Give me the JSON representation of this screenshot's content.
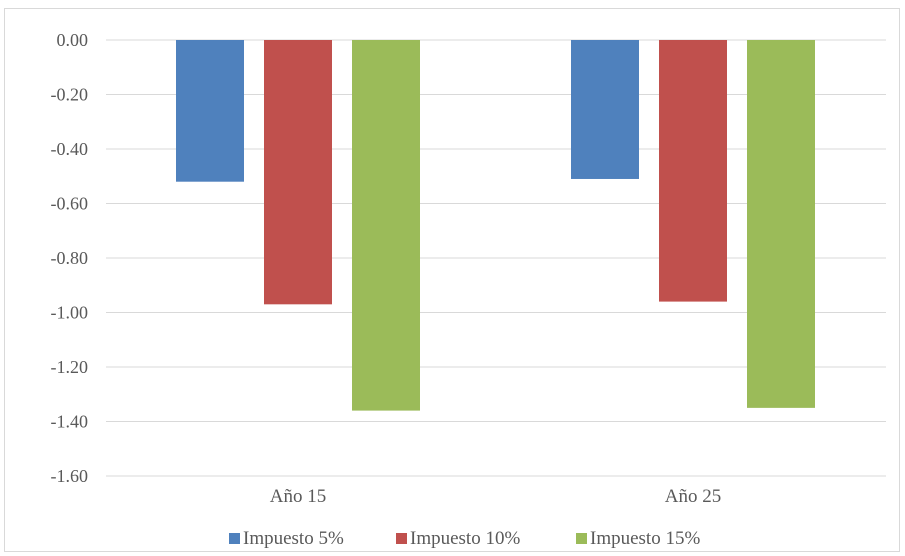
{
  "chart_data": {
    "type": "bar",
    "categories": [
      "Año 15",
      "Año 25"
    ],
    "series": [
      {
        "name": "Impuesto 5%",
        "color": "#4f81bd",
        "values": [
          -0.52,
          -0.51
        ]
      },
      {
        "name": "Impuesto 10%",
        "color": "#c0504d",
        "values": [
          -0.97,
          -0.96
        ]
      },
      {
        "name": "Impuesto 15%",
        "color": "#9bbb59",
        "values": [
          -1.36,
          -1.35
        ]
      }
    ],
    "ylim": [
      -1.6,
      0.0
    ],
    "yticks": [
      "0.00",
      "-0.20",
      "-0.40",
      "-0.60",
      "-0.80",
      "-1.00",
      "-1.20",
      "-1.40",
      "-1.60"
    ],
    "ytick_values": [
      0.0,
      -0.2,
      -0.4,
      -0.6,
      -0.8,
      -1.0,
      -1.2,
      -1.4,
      -1.6
    ],
    "grid": true,
    "legend_position": "bottom",
    "title": "",
    "xlabel": "",
    "ylabel": ""
  }
}
